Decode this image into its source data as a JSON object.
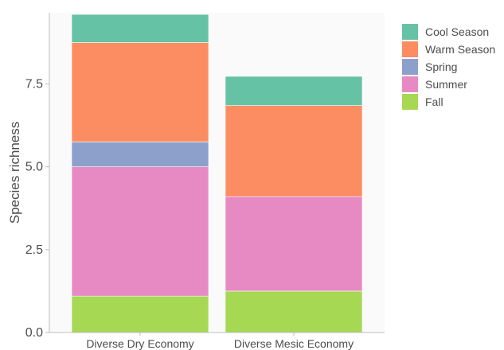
{
  "chart_data": {
    "type": "bar",
    "stacked": true,
    "categories": [
      "Diverse Dry Economy",
      "Diverse Mesic Economy"
    ],
    "series": [
      {
        "name": "Fall",
        "color": "#a6d854",
        "values": [
          1.1,
          1.25
        ]
      },
      {
        "name": "Summer",
        "color": "#e78ac3",
        "values": [
          3.9,
          2.85
        ]
      },
      {
        "name": "Spring",
        "color": "#8da0cb",
        "values": [
          0.75,
          0.0
        ]
      },
      {
        "name": "Warm Season",
        "color": "#fc8d62",
        "values": [
          3.0,
          2.75
        ]
      },
      {
        "name": "Cool Season",
        "color": "#66c2a5",
        "values": [
          0.85,
          0.88
        ]
      }
    ],
    "legend_order": [
      "Cool Season",
      "Warm Season",
      "Spring",
      "Summer",
      "Fall"
    ],
    "ylabel": "Species richness",
    "xlabel": "",
    "yticks": [
      "0.0",
      "2.5",
      "5.0",
      "7.5"
    ],
    "ylim": [
      0,
      9.65
    ],
    "legend_position": "right",
    "panel_background": "#fafafa"
  }
}
